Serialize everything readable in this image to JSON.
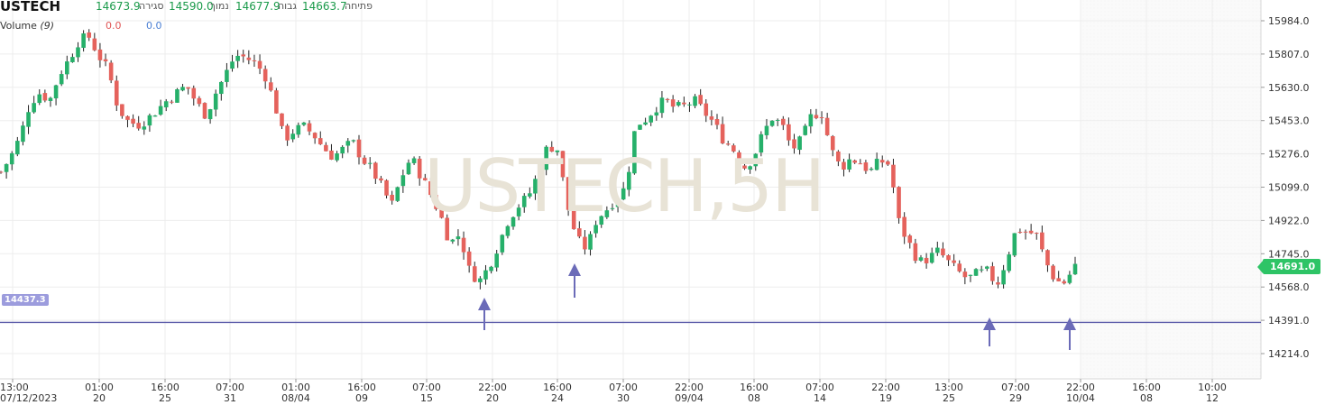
{
  "header": {
    "symbol": "USTECH",
    "close_label": "סגירה",
    "close_value": "14673.9",
    "low_label": "נמוך",
    "low_value": "14590.0",
    "high_label": "גבוה",
    "high_value": "14677.9",
    "open_label": "פתיחה",
    "open_value": "14663.7",
    "volume_label": "Volume",
    "volume_period": "(9)",
    "volume_value_1": "0.0",
    "volume_value_2": "0.0"
  },
  "watermark": "USTECH,5H",
  "horizontal_line": {
    "label": "14437.3",
    "price": 14437.3,
    "color": "#5a5aa8"
  },
  "last_price": {
    "label": "14691.0",
    "price": 14691.0
  },
  "colors": {
    "up": "#26b06a",
    "down": "#e5625c",
    "arrow": "#6b6bb8"
  },
  "chart_data": {
    "type": "candlestick",
    "ylim": [
      14125,
      16060
    ],
    "y_ticks": [
      {
        "value": 15984.0,
        "label": "15984.0"
      },
      {
        "value": 15807.0,
        "label": "15807.0"
      },
      {
        "value": 15630.0,
        "label": "15630.0"
      },
      {
        "value": 15453.0,
        "label": "15453.0"
      },
      {
        "value": 15276.0,
        "label": "15276.0"
      },
      {
        "value": 15099.0,
        "label": "15099.0"
      },
      {
        "value": 14922.0,
        "label": "14922.0"
      },
      {
        "value": 14745.0,
        "label": "14745.0"
      },
      {
        "value": 14568.0,
        "label": "14568.0"
      },
      {
        "value": 14391.0,
        "label": "14391.0"
      },
      {
        "value": 14214.0,
        "label": "14214.0"
      }
    ],
    "x_ticks": [
      {
        "time": "13:00",
        "date": "07/12/2023"
      },
      {
        "time": "01:00",
        "date": "20"
      },
      {
        "time": "16:00",
        "date": "25"
      },
      {
        "time": "07:00",
        "date": "31"
      },
      {
        "time": "01:00",
        "date": "08/04"
      },
      {
        "time": "16:00",
        "date": "09"
      },
      {
        "time": "07:00",
        "date": "15"
      },
      {
        "time": "22:00",
        "date": "20"
      },
      {
        "time": "16:00",
        "date": "24"
      },
      {
        "time": "07:00",
        "date": "30"
      },
      {
        "time": "22:00",
        "date": "09/04"
      },
      {
        "time": "16:00",
        "date": "08"
      },
      {
        "time": "07:00",
        "date": "14"
      },
      {
        "time": "22:00",
        "date": "19"
      },
      {
        "time": "13:00",
        "date": "25"
      },
      {
        "time": "07:00",
        "date": "29"
      },
      {
        "time": "22:00",
        "date": "10/04"
      },
      {
        "time": "16:00",
        "date": "08"
      },
      {
        "time": "10:00",
        "date": "12"
      }
    ],
    "close_path": [
      15180,
      15260,
      15370,
      15550,
      15600,
      15560,
      15700,
      15780,
      15880,
      15900,
      15800,
      15720,
      15520,
      15450,
      15430,
      15460,
      15510,
      15560,
      15600,
      15640,
      15550,
      15480,
      15600,
      15700,
      15800,
      15790,
      15760,
      15700,
      15550,
      15350,
      15400,
      15420,
      15380,
      15310,
      15260,
      15300,
      15340,
      15250,
      15190,
      15100,
      15000,
      15150,
      15260,
      15160,
      15060,
      14950,
      14800,
      14850,
      14650,
      14600,
      14680,
      14800,
      14930,
      15000,
      15050,
      15170,
      15320,
      15300,
      15000,
      14820,
      14770,
      14930,
      14980,
      15040,
      15100,
      15430,
      15460,
      15520,
      15560,
      15520,
      15530,
      15560,
      15500,
      15440,
      15350,
      15300,
      15200,
      15250,
      15380,
      15470,
      15430,
      15300,
      15350,
      15480,
      15500,
      15300,
      15200,
      15250,
      15230,
      15180,
      15240,
      15220,
      14900,
      14800,
      14700,
      14720,
      14760,
      14700,
      14650,
      14610,
      14640,
      14650,
      14580,
      14720,
      14880,
      14860,
      14850,
      14700,
      14600,
      14591,
      14691
    ],
    "candle_count": 196
  },
  "arrows": [
    {
      "label": "arrow-1"
    },
    {
      "label": "arrow-2"
    },
    {
      "label": "arrow-3"
    },
    {
      "label": "arrow-4"
    }
  ]
}
